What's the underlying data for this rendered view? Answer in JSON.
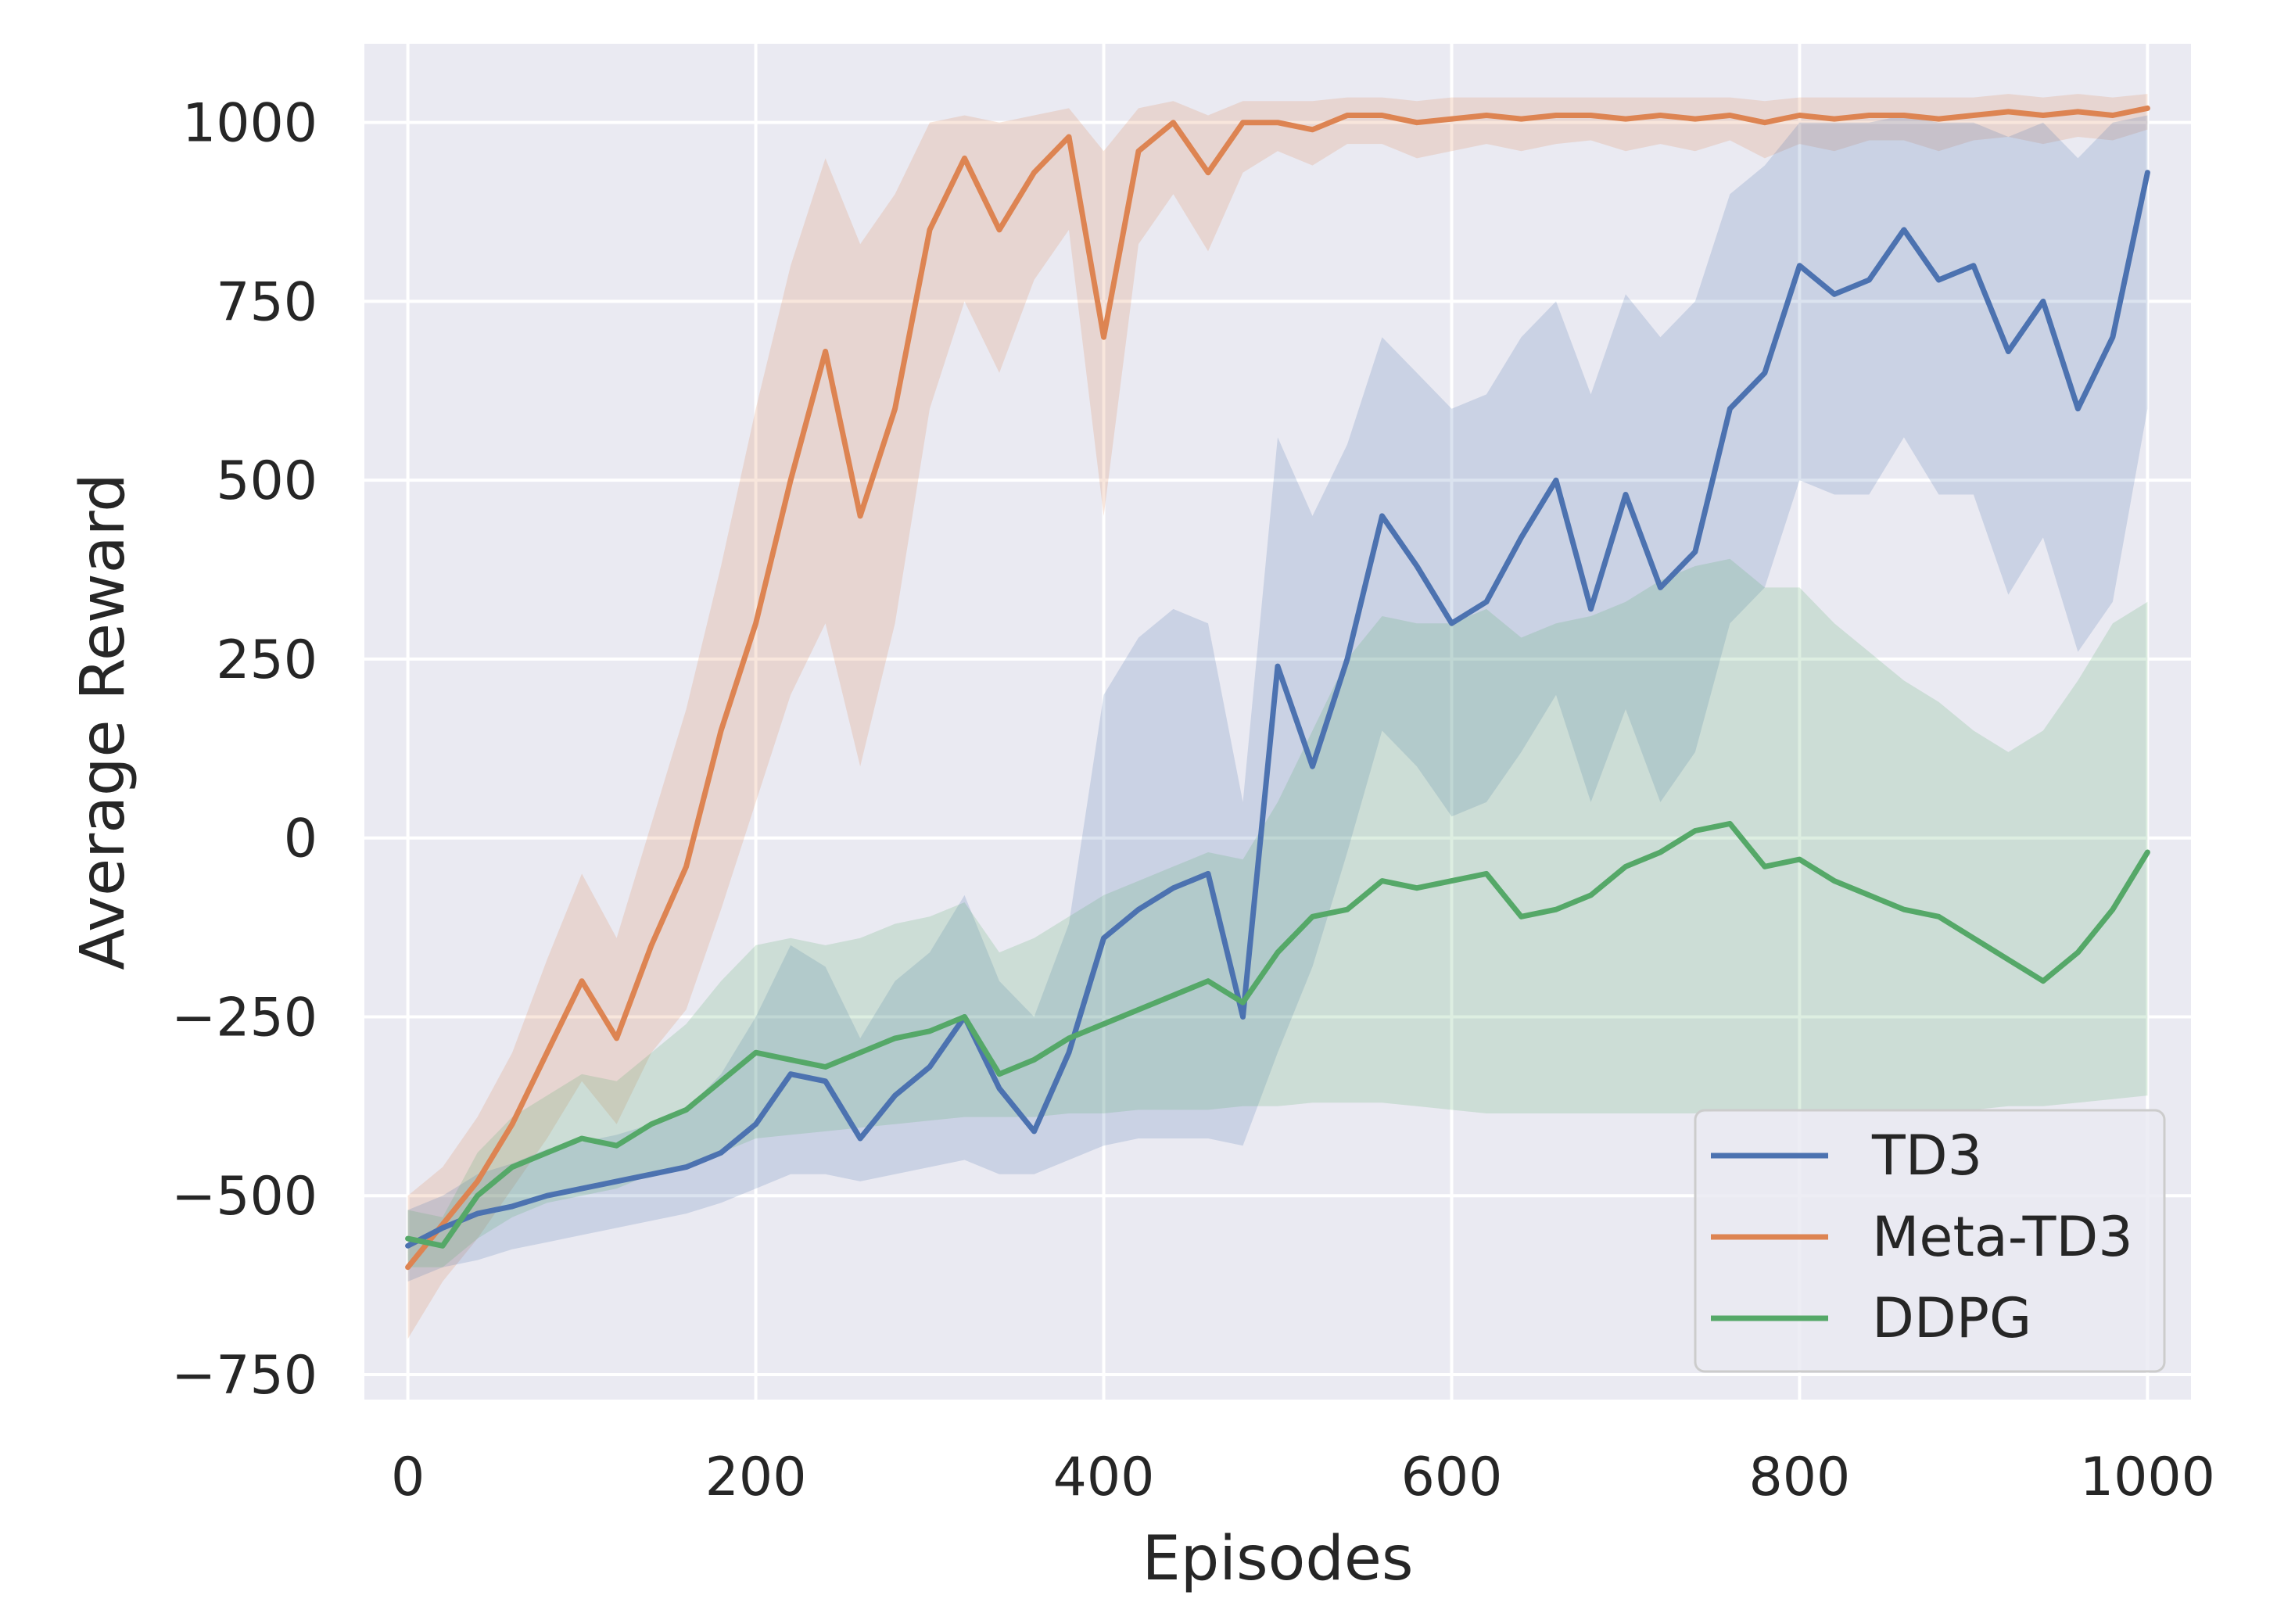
{
  "chart_data": {
    "type": "line",
    "title": "",
    "xlabel": "Episodes",
    "ylabel": "Average Reward",
    "xlim": [
      -25,
      1025
    ],
    "ylim": [
      -785,
      1110
    ],
    "xticks": [
      0,
      200,
      400,
      600,
      800,
      1000
    ],
    "yticks": [
      -750,
      -500,
      -250,
      0,
      250,
      500,
      750,
      1000
    ],
    "xtick_labels": [
      "0",
      "200",
      "400",
      "600",
      "800",
      "1000"
    ],
    "ytick_labels": [
      "−750",
      "−500",
      "−250",
      "0",
      "250",
      "500",
      "750",
      "1000"
    ],
    "grid": true,
    "background": "#eaeaf2",
    "legend": {
      "placement": "lower-right",
      "entries": [
        "TD3",
        "Meta-TD3",
        "DDPG"
      ]
    },
    "series": [
      {
        "name": "TD3",
        "color": "#4c72b0",
        "x": [
          0,
          20,
          40,
          60,
          80,
          100,
          120,
          140,
          160,
          180,
          200,
          220,
          240,
          260,
          280,
          300,
          320,
          340,
          360,
          380,
          400,
          420,
          440,
          460,
          480,
          500,
          520,
          540,
          560,
          580,
          600,
          620,
          640,
          660,
          680,
          700,
          720,
          740,
          760,
          780,
          800,
          820,
          840,
          860,
          880,
          900,
          920,
          940,
          960,
          980,
          1000
        ],
        "mean": [
          -570,
          -545,
          -525,
          -515,
          -500,
          -490,
          -480,
          -470,
          -460,
          -440,
          -400,
          -330,
          -340,
          -420,
          -360,
          -320,
          -250,
          -350,
          -410,
          -300,
          -140,
          -100,
          -70,
          -50,
          -250,
          240,
          100,
          250,
          450,
          380,
          300,
          330,
          420,
          500,
          320,
          480,
          350,
          400,
          600,
          650,
          800,
          760,
          780,
          850,
          780,
          800,
          680,
          750,
          600,
          700,
          930
        ],
        "lower": [
          -620,
          -600,
          -590,
          -575,
          -565,
          -555,
          -545,
          -535,
          -525,
          -510,
          -490,
          -470,
          -470,
          -480,
          -470,
          -460,
          -450,
          -470,
          -470,
          -450,
          -430,
          -420,
          -420,
          -420,
          -430,
          -300,
          -180,
          -20,
          150,
          100,
          30,
          50,
          120,
          200,
          50,
          180,
          50,
          120,
          300,
          350,
          500,
          480,
          480,
          560,
          480,
          480,
          340,
          420,
          260,
          330,
          600
        ],
        "upper": [
          -520,
          -500,
          -470,
          -455,
          -435,
          -425,
          -415,
          -400,
          -380,
          -330,
          -250,
          -150,
          -180,
          -280,
          -200,
          -160,
          -80,
          -200,
          -250,
          -120,
          200,
          280,
          320,
          300,
          50,
          560,
          450,
          550,
          700,
          650,
          600,
          620,
          700,
          750,
          620,
          760,
          700,
          750,
          900,
          940,
          1000,
          1000,
          1000,
          1010,
          1000,
          1000,
          980,
          1000,
          950,
          1000,
          1010
        ]
      },
      {
        "name": "Meta-TD3",
        "color": "#dd8452",
        "x": [
          0,
          20,
          40,
          60,
          80,
          100,
          120,
          140,
          160,
          180,
          200,
          220,
          240,
          260,
          280,
          300,
          320,
          340,
          360,
          380,
          400,
          420,
          440,
          460,
          480,
          500,
          520,
          540,
          560,
          580,
          600,
          620,
          640,
          660,
          680,
          700,
          720,
          740,
          760,
          780,
          800,
          820,
          840,
          860,
          880,
          900,
          920,
          940,
          960,
          980,
          1000
        ],
        "mean": [
          -600,
          -540,
          -480,
          -400,
          -300,
          -200,
          -280,
          -150,
          -40,
          150,
          300,
          500,
          680,
          450,
          600,
          850,
          950,
          850,
          930,
          980,
          700,
          960,
          1000,
          930,
          1000,
          1000,
          990,
          1010,
          1010,
          1000,
          1005,
          1010,
          1005,
          1010,
          1010,
          1005,
          1010,
          1005,
          1010,
          1000,
          1010,
          1005,
          1010,
          1010,
          1005,
          1010,
          1015,
          1010,
          1015,
          1010,
          1020
        ],
        "lower": [
          -700,
          -620,
          -560,
          -490,
          -420,
          -340,
          -400,
          -300,
          -240,
          -100,
          50,
          200,
          300,
          100,
          300,
          600,
          750,
          650,
          780,
          850,
          450,
          830,
          900,
          820,
          930,
          960,
          940,
          970,
          970,
          950,
          960,
          970,
          960,
          970,
          975,
          960,
          970,
          960,
          975,
          950,
          970,
          960,
          975,
          975,
          960,
          975,
          980,
          970,
          980,
          975,
          990
        ],
        "upper": [
          -500,
          -460,
          -390,
          -300,
          -170,
          -50,
          -140,
          20,
          180,
          380,
          600,
          800,
          950,
          830,
          900,
          1000,
          1010,
          1000,
          1010,
          1020,
          960,
          1020,
          1030,
          1010,
          1030,
          1030,
          1030,
          1035,
          1035,
          1030,
          1035,
          1035,
          1035,
          1035,
          1035,
          1035,
          1035,
          1035,
          1035,
          1030,
          1035,
          1035,
          1035,
          1035,
          1035,
          1035,
          1040,
          1035,
          1040,
          1035,
          1040
        ]
      },
      {
        "name": "DDPG",
        "color": "#55a868",
        "x": [
          0,
          20,
          40,
          60,
          80,
          100,
          120,
          140,
          160,
          180,
          200,
          220,
          240,
          260,
          280,
          300,
          320,
          340,
          360,
          380,
          400,
          420,
          440,
          460,
          480,
          500,
          520,
          540,
          560,
          580,
          600,
          620,
          640,
          660,
          680,
          700,
          720,
          740,
          760,
          780,
          800,
          820,
          840,
          860,
          880,
          900,
          920,
          940,
          960,
          980,
          1000
        ],
        "mean": [
          -560,
          -570,
          -500,
          -460,
          -440,
          -420,
          -430,
          -400,
          -380,
          -340,
          -300,
          -310,
          -320,
          -300,
          -280,
          -270,
          -250,
          -330,
          -310,
          -280,
          -260,
          -240,
          -220,
          -200,
          -230,
          -160,
          -110,
          -100,
          -60,
          -70,
          -60,
          -50,
          -110,
          -100,
          -80,
          -40,
          -20,
          10,
          20,
          -40,
          -30,
          -60,
          -80,
          -100,
          -110,
          -140,
          -170,
          -200,
          -160,
          -100,
          -20
        ],
        "lower": [
          -600,
          -600,
          -560,
          -530,
          -510,
          -500,
          -490,
          -470,
          -460,
          -440,
          -420,
          -415,
          -410,
          -405,
          -400,
          -395,
          -390,
          -390,
          -390,
          -385,
          -385,
          -380,
          -380,
          -380,
          -375,
          -375,
          -370,
          -370,
          -370,
          -375,
          -380,
          -385,
          -385,
          -385,
          -385,
          -385,
          -385,
          -385,
          -380,
          -380,
          -380,
          -380,
          -380,
          -380,
          -380,
          -380,
          -375,
          -375,
          -370,
          -365,
          -360
        ],
        "upper": [
          -520,
          -530,
          -440,
          -390,
          -360,
          -330,
          -340,
          -300,
          -260,
          -200,
          -150,
          -140,
          -150,
          -140,
          -120,
          -110,
          -90,
          -160,
          -140,
          -110,
          -80,
          -60,
          -40,
          -20,
          -30,
          50,
          150,
          250,
          310,
          300,
          300,
          320,
          280,
          300,
          310,
          330,
          360,
          380,
          390,
          350,
          350,
          300,
          260,
          220,
          190,
          150,
          120,
          150,
          220,
          300,
          330
        ]
      }
    ]
  }
}
